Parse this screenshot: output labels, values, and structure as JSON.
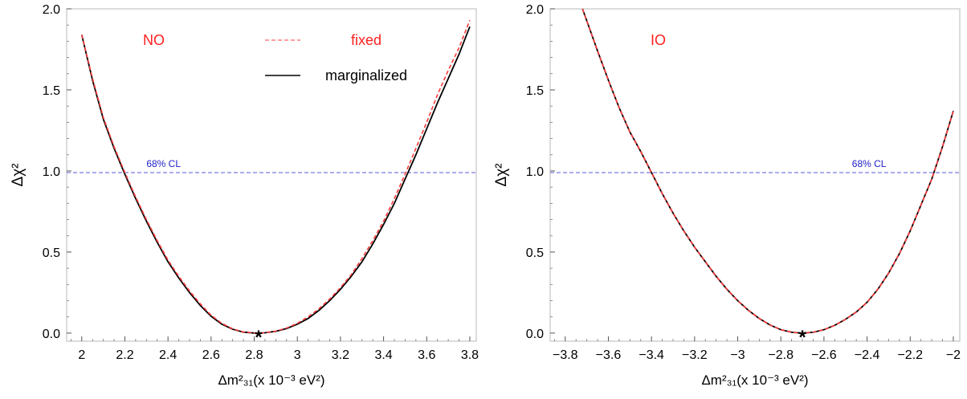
{
  "chart_data": [
    {
      "type": "line",
      "xlabel": "Δm²₃₁(x 10⁻³ eV²)",
      "ylabel": "Δχ²",
      "xlim": [
        1.93,
        3.83
      ],
      "ylim": [
        -0.05,
        2.0
      ],
      "xticks": [
        2.0,
        2.2,
        2.4,
        2.6,
        2.8,
        3.0,
        3.2,
        3.4,
        3.6,
        3.8
      ],
      "xtick_labels": [
        "2",
        "2.2",
        "2.4",
        "2.6",
        "2.8",
        "3",
        "3.2",
        "3.4",
        "3.6",
        "3.8"
      ],
      "yticks": [
        0.0,
        0.5,
        1.0,
        1.5,
        2.0
      ],
      "ytick_labels": [
        "0.0",
        "0.5",
        "1.0",
        "1.5",
        "2.0"
      ],
      "hierarchy_label": "NO",
      "cl_line": {
        "y": 0.99,
        "label": "68% CL",
        "label_x": 2.3,
        "color": "#5a5ad8"
      },
      "best_fit": {
        "x": 2.82,
        "y": 0.0
      },
      "legend": [
        {
          "name": "fixed",
          "style": "dashed",
          "color": "#ff3b3b"
        },
        {
          "name": "marginalized",
          "style": "solid",
          "color": "#000000"
        }
      ],
      "series": [
        {
          "name": "fixed",
          "color": "#ff3b3b",
          "style": "dashed",
          "x": [
            2.0,
            2.05,
            2.1,
            2.15,
            2.2,
            2.25,
            2.3,
            2.35,
            2.4,
            2.45,
            2.5,
            2.55,
            2.6,
            2.65,
            2.7,
            2.75,
            2.8,
            2.82,
            2.85,
            2.9,
            2.95,
            3.0,
            3.05,
            3.1,
            3.15,
            3.2,
            3.25,
            3.3,
            3.35,
            3.4,
            3.45,
            3.5,
            3.55,
            3.6,
            3.65,
            3.7,
            3.75,
            3.8
          ],
          "y": [
            1.84,
            1.57,
            1.33,
            1.15,
            0.99,
            0.84,
            0.7,
            0.57,
            0.45,
            0.35,
            0.26,
            0.18,
            0.11,
            0.06,
            0.026,
            0.007,
            0.0005,
            0.0,
            0.002,
            0.012,
            0.031,
            0.06,
            0.1,
            0.15,
            0.21,
            0.28,
            0.36,
            0.46,
            0.57,
            0.69,
            0.83,
            0.98,
            1.14,
            1.3,
            1.47,
            1.62,
            1.76,
            1.93
          ]
        },
        {
          "name": "marginalized",
          "color": "#000000",
          "style": "solid",
          "x": [
            2.0,
            2.05,
            2.1,
            2.15,
            2.2,
            2.25,
            2.3,
            2.35,
            2.4,
            2.45,
            2.5,
            2.55,
            2.6,
            2.65,
            2.7,
            2.75,
            2.8,
            2.82,
            2.85,
            2.9,
            2.95,
            3.0,
            3.05,
            3.1,
            3.15,
            3.2,
            3.25,
            3.3,
            3.35,
            3.4,
            3.45,
            3.5,
            3.55,
            3.6,
            3.65,
            3.7,
            3.75,
            3.8
          ],
          "y": [
            1.84,
            1.56,
            1.32,
            1.14,
            0.98,
            0.83,
            0.69,
            0.56,
            0.44,
            0.34,
            0.25,
            0.17,
            0.104,
            0.055,
            0.024,
            0.006,
            0.0004,
            0.0,
            0.002,
            0.011,
            0.028,
            0.055,
            0.09,
            0.14,
            0.2,
            0.27,
            0.35,
            0.44,
            0.55,
            0.67,
            0.8,
            0.95,
            1.1,
            1.26,
            1.42,
            1.57,
            1.72,
            1.89
          ]
        }
      ]
    },
    {
      "type": "line",
      "xlabel": "Δm²₃₁(x 10⁻³ eV²)",
      "ylabel": "Δχ²",
      "xlim": [
        -3.87,
        -1.97
      ],
      "ylim": [
        -0.05,
        2.0
      ],
      "xticks": [
        -3.8,
        -3.6,
        -3.4,
        -3.2,
        -3.0,
        -2.8,
        -2.6,
        -2.4,
        -2.2,
        -2.0
      ],
      "xtick_labels": [
        "−3.8",
        "−3.6",
        "−3.4",
        "−3.2",
        "−3",
        "−2.8",
        "−2.6",
        "−2.4",
        "−2.2",
        "−2"
      ],
      "yticks": [
        0.0,
        0.5,
        1.0,
        1.5,
        2.0
      ],
      "ytick_labels": [
        "0.0",
        "0.5",
        "1.0",
        "1.5",
        "2.0"
      ],
      "hierarchy_label": "IO",
      "cl_line": {
        "y": 0.99,
        "label": "68% CL",
        "label_x": -2.47,
        "color": "#5a5ad8"
      },
      "best_fit": {
        "x": -2.7,
        "y": 0.0
      },
      "series": [
        {
          "name": "fixed",
          "color": "#ff3b3b",
          "style": "dashed",
          "x": [
            -3.72,
            -3.65,
            -3.6,
            -3.55,
            -3.5,
            -3.45,
            -3.4,
            -3.35,
            -3.3,
            -3.25,
            -3.2,
            -3.15,
            -3.1,
            -3.05,
            -3.0,
            -2.95,
            -2.9,
            -2.85,
            -2.8,
            -2.75,
            -2.7,
            -2.65,
            -2.6,
            -2.55,
            -2.5,
            -2.45,
            -2.4,
            -2.35,
            -2.3,
            -2.25,
            -2.2,
            -2.15,
            -2.1,
            -2.05,
            -2.0
          ],
          "y": [
            2.0,
            1.74,
            1.56,
            1.39,
            1.24,
            1.12,
            0.99,
            0.86,
            0.74,
            0.63,
            0.53,
            0.44,
            0.35,
            0.27,
            0.2,
            0.14,
            0.09,
            0.05,
            0.021,
            0.005,
            0.0,
            0.005,
            0.021,
            0.048,
            0.085,
            0.13,
            0.19,
            0.27,
            0.37,
            0.49,
            0.63,
            0.79,
            0.95,
            1.15,
            1.37
          ]
        },
        {
          "name": "marginalized",
          "color": "#000000",
          "style": "solid",
          "x": [
            -3.72,
            -3.65,
            -3.6,
            -3.55,
            -3.5,
            -3.45,
            -3.4,
            -3.35,
            -3.3,
            -3.25,
            -3.2,
            -3.15,
            -3.1,
            -3.05,
            -3.0,
            -2.95,
            -2.9,
            -2.85,
            -2.8,
            -2.75,
            -2.7,
            -2.65,
            -2.6,
            -2.55,
            -2.5,
            -2.45,
            -2.4,
            -2.35,
            -2.3,
            -2.25,
            -2.2,
            -2.15,
            -2.1,
            -2.05,
            -2.0
          ],
          "y": [
            2.0,
            1.74,
            1.56,
            1.39,
            1.24,
            1.12,
            0.99,
            0.86,
            0.74,
            0.63,
            0.53,
            0.44,
            0.35,
            0.27,
            0.2,
            0.14,
            0.09,
            0.05,
            0.021,
            0.005,
            0.0,
            0.005,
            0.021,
            0.048,
            0.085,
            0.13,
            0.19,
            0.27,
            0.37,
            0.49,
            0.63,
            0.79,
            0.95,
            1.15,
            1.37
          ]
        }
      ]
    }
  ]
}
